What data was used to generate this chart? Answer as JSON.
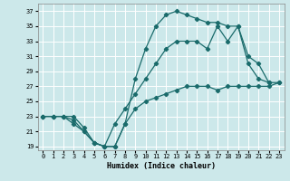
{
  "xlabel": "Humidex (Indice chaleur)",
  "background_color": "#cce8ea",
  "grid_color": "#ffffff",
  "line_color": "#1a6b6b",
  "xlim": [
    -0.5,
    23.5
  ],
  "ylim": [
    18.5,
    38.0
  ],
  "yticks": [
    19,
    21,
    23,
    25,
    27,
    29,
    31,
    33,
    35,
    37
  ],
  "xticks": [
    0,
    1,
    2,
    3,
    4,
    5,
    6,
    7,
    8,
    9,
    10,
    11,
    12,
    13,
    14,
    15,
    16,
    17,
    18,
    19,
    20,
    21,
    22,
    23
  ],
  "line_max_x": [
    0,
    1,
    2,
    3,
    4,
    5,
    6,
    7,
    8,
    9,
    10,
    11,
    12,
    13,
    14,
    15,
    16,
    17,
    18,
    19,
    20,
    21,
    22
  ],
  "line_max_y": [
    23,
    23,
    23,
    22,
    21,
    19.5,
    19,
    19,
    22,
    28,
    32,
    35,
    36.5,
    37,
    36.5,
    36,
    35.5,
    35.5,
    35,
    35,
    31,
    30,
    27.5
  ],
  "line_min_x": [
    0,
    1,
    2,
    3,
    4,
    5,
    6,
    7,
    8,
    9,
    10,
    11,
    12,
    13,
    14,
    15,
    16,
    17,
    18,
    19,
    20,
    21,
    22,
    23
  ],
  "line_min_y": [
    23,
    23,
    23,
    23,
    21.5,
    19.5,
    19,
    19,
    22,
    24,
    25,
    25.5,
    26,
    26.5,
    27,
    27,
    27,
    26.5,
    27,
    27,
    27,
    27,
    27,
    27.5
  ],
  "line_avg_x": [
    0,
    1,
    2,
    3,
    4,
    5,
    6,
    7,
    8,
    9,
    10,
    11,
    12,
    13,
    14,
    15,
    16,
    17,
    18,
    19,
    20,
    21,
    22,
    23
  ],
  "line_avg_y": [
    23,
    23,
    23,
    22.5,
    21,
    19.5,
    19,
    22,
    24,
    26,
    28,
    30,
    32,
    33,
    33,
    33,
    32,
    35,
    33,
    35,
    30,
    28,
    27.5,
    27.5
  ]
}
